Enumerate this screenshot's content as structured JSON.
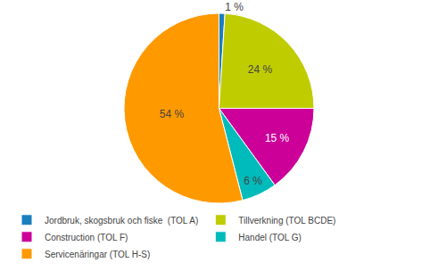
{
  "chart_data": {
    "type": "pie",
    "categories": [
      "Jordbruk, skogsbruk och fiske  (TOL A)",
      "Tillverkning (TOL BCDE)",
      "Construction (TOL F)",
      "Handel (TOL G)",
      "Servicenäringar (TOL H-S)"
    ],
    "values": [
      1,
      24,
      15,
      6,
      54
    ],
    "value_labels": [
      "1 %",
      "24 %",
      "15 %",
      "6 %",
      "54 %"
    ],
    "colors": [
      "#1B7EBF",
      "#BFCC00",
      "#CC0099",
      "#00BBBB",
      "#FF9900"
    ],
    "data_labels": true,
    "legend": "lower left"
  }
}
